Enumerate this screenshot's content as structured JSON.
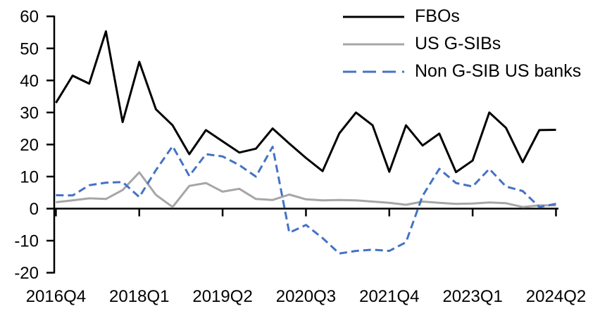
{
  "chart_data": {
    "type": "line",
    "title": "",
    "categories": [
      "2016Q4",
      "2017Q1",
      "2017Q2",
      "2017Q3",
      "2017Q4",
      "2018Q1",
      "2018Q2",
      "2018Q3",
      "2018Q4",
      "2019Q1",
      "2019Q2",
      "2019Q3",
      "2019Q4",
      "2020Q1",
      "2020Q2",
      "2020Q3",
      "2020Q4",
      "2021Q1",
      "2021Q2",
      "2021Q3",
      "2021Q4",
      "2022Q1",
      "2022Q2",
      "2022Q3",
      "2022Q4",
      "2023Q1",
      "2023Q2",
      "2023Q3",
      "2023Q4",
      "2024Q1",
      "2024Q2"
    ],
    "series": [
      {
        "name": "FBOs",
        "color": "#000000",
        "style": "solid",
        "values": [
          33,
          41.5,
          39,
          55.3,
          27,
          45.8,
          31,
          26,
          17,
          24.5,
          21,
          17.5,
          18.7,
          25,
          20.3,
          15.8,
          11.7,
          23.5,
          30,
          26,
          11.5,
          26,
          19.7,
          23.4,
          11.4,
          15,
          30,
          25.2,
          14.5,
          24.5,
          24.6
        ]
      },
      {
        "name": "US G-SIBs",
        "color": "#A6A6A6",
        "style": "solid",
        "values": [
          2,
          2.6,
          3.2,
          3,
          5.8,
          11.3,
          4.3,
          0.5,
          7.1,
          8,
          5.3,
          6.2,
          3,
          2.7,
          4.4,
          2.9,
          2.6,
          2.7,
          2.6,
          2.2,
          1.8,
          1.2,
          2.2,
          1.8,
          1.5,
          1.6,
          1.9,
          1.7,
          0.5,
          1,
          1
        ]
      },
      {
        "name": "Non G-SIB US banks",
        "color": "#4472C4",
        "style": "dashed",
        "values": [
          4.2,
          4.1,
          7.3,
          8.1,
          8.3,
          3.6,
          12,
          19.5,
          10.2,
          17,
          16.3,
          13.6,
          10,
          19.3,
          -7.5,
          -5.1,
          -9.2,
          -14,
          -13.2,
          -12.8,
          -13.2,
          -10.5,
          4,
          12.4,
          8,
          6.9,
          12.4,
          6.9,
          5.5,
          0.5,
          1.5
        ]
      }
    ],
    "y_axis": {
      "min": -20,
      "max": 60,
      "ticks": [
        60,
        50,
        40,
        30,
        20,
        10,
        0,
        -10,
        -20
      ]
    },
    "x_axis": {
      "tick_labels": [
        "2016Q4",
        "2018Q1",
        "2019Q2",
        "2020Q3",
        "2021Q4",
        "2023Q1",
        "2024Q2"
      ],
      "tick_indices": [
        0,
        5,
        10,
        15,
        20,
        25,
        30
      ]
    },
    "grid": false,
    "legend_position": "top-right",
    "axis_color": "#000000"
  }
}
